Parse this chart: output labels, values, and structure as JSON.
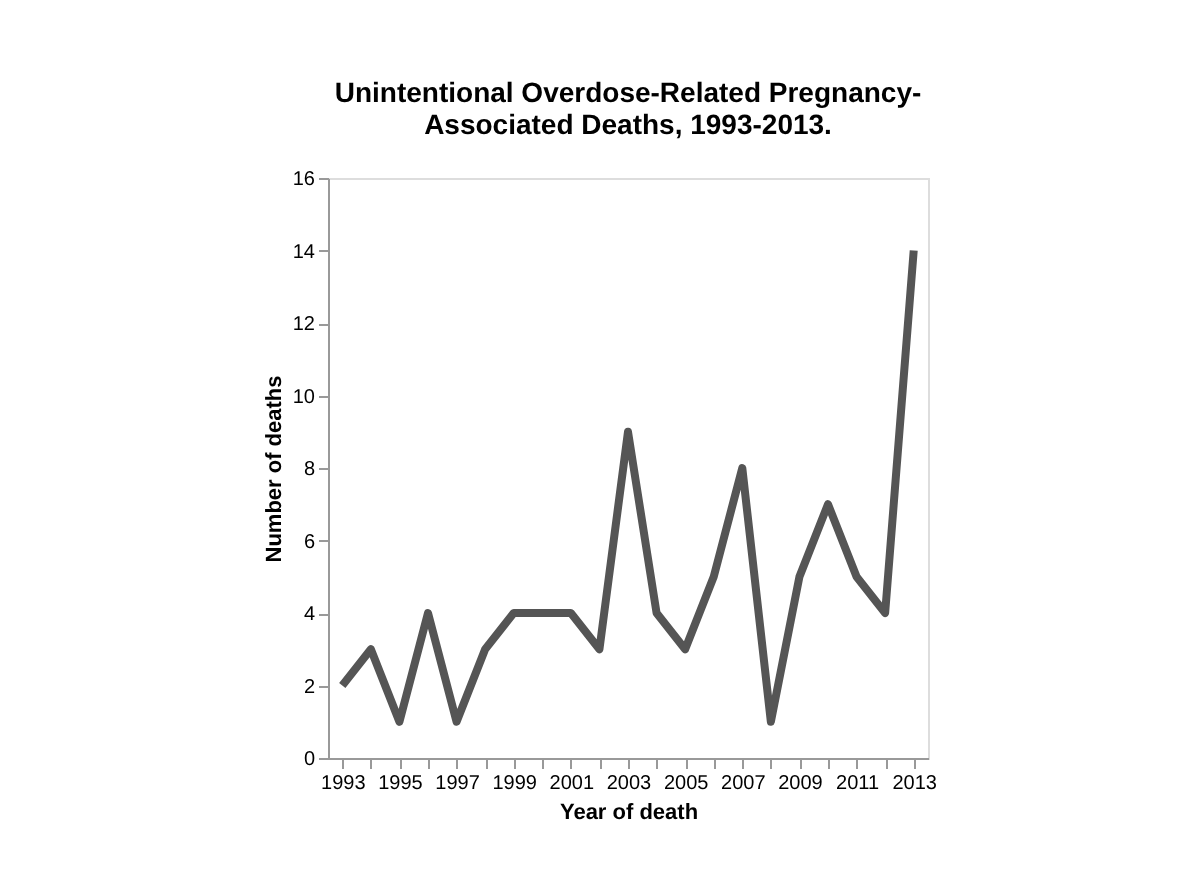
{
  "chart_data": {
    "type": "line",
    "title": "Unintentional Overdose-Related Pregnancy-Associated Deaths, 1993-2013.",
    "xlabel": "Year of death",
    "ylabel": "Number of deaths",
    "categories": [
      "1993",
      null,
      "1995",
      null,
      "1997",
      null,
      "1999",
      null,
      "2001",
      null,
      "2003",
      null,
      "2005",
      null,
      "2007",
      null,
      "2009",
      null,
      "2011",
      null,
      "2013"
    ],
    "series": [
      {
        "color": "#555555",
        "values": [
          2,
          3,
          1,
          4,
          1,
          3,
          4,
          4,
          4,
          3,
          9,
          4,
          3,
          5,
          8,
          1,
          5,
          7,
          5,
          4,
          14
        ]
      }
    ],
    "ylim": [
      0,
      16
    ],
    "yticks": [
      0,
      2,
      4,
      6,
      8,
      10,
      12,
      14,
      16
    ],
    "grid": false,
    "marker": "none",
    "line_style": "solid"
  }
}
